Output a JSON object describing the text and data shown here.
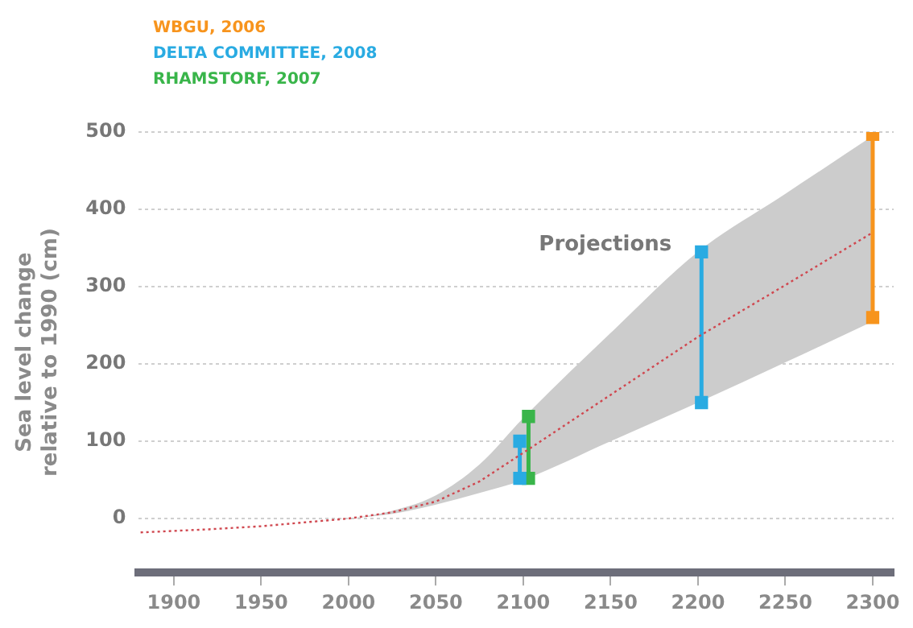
{
  "chart_data": {
    "type": "line",
    "ylabel": "Sea level change\nrelative to 1990 (cm)",
    "xlim": [
      1880,
      2312
    ],
    "xticks": [
      1900,
      1950,
      2000,
      2050,
      2100,
      2150,
      2200,
      2250,
      2300
    ],
    "ylim": [
      -70,
      500
    ],
    "yticks": [
      0,
      100,
      200,
      300,
      400,
      500
    ],
    "grid": "y",
    "legend": "top left",
    "annotations": [
      "Projections"
    ],
    "series": [
      {
        "color": "#d0474f",
        "line_style": "dotted",
        "marker": "none",
        "x": [
          1881,
          1920,
          1950,
          1975,
          2000,
          2025,
          2050,
          2075,
          2100,
          2150,
          2200,
          2250,
          2300
        ],
        "values": [
          -18,
          -14,
          -10,
          -5,
          0,
          8,
          22,
          48,
          85,
          160,
          235,
          302,
          370
        ],
        "lower": [
          -18,
          -14,
          -10,
          -5,
          0,
          6,
          18,
          33,
          50,
          100,
          150,
          202,
          255
        ],
        "upper": [
          -18,
          -14,
          -10,
          -5,
          0,
          10,
          30,
          70,
          130,
          240,
          345,
          420,
          495
        ]
      },
      {
        "name": "WBGU, 2006",
        "color": "#f7941d",
        "line_style": "solid",
        "marker": "square",
        "x": [
          2300,
          2300
        ],
        "values": [
          260,
          497
        ]
      },
      {
        "name": "DELTA COMMITTEE, 2008",
        "color": "#29abe2",
        "line_style": "solid",
        "marker": "square",
        "x": [
          2098,
          2098,
          2150,
          2202,
          2202
        ],
        "values": [
          52,
          100,
          null,
          150,
          345
        ]
      },
      {
        "name": "RHAMSTORF, 2007",
        "color": "#39b54a",
        "line_style": "solid",
        "marker": "square",
        "x": [
          2103,
          2103
        ],
        "values": [
          52,
          132
        ]
      }
    ]
  }
}
